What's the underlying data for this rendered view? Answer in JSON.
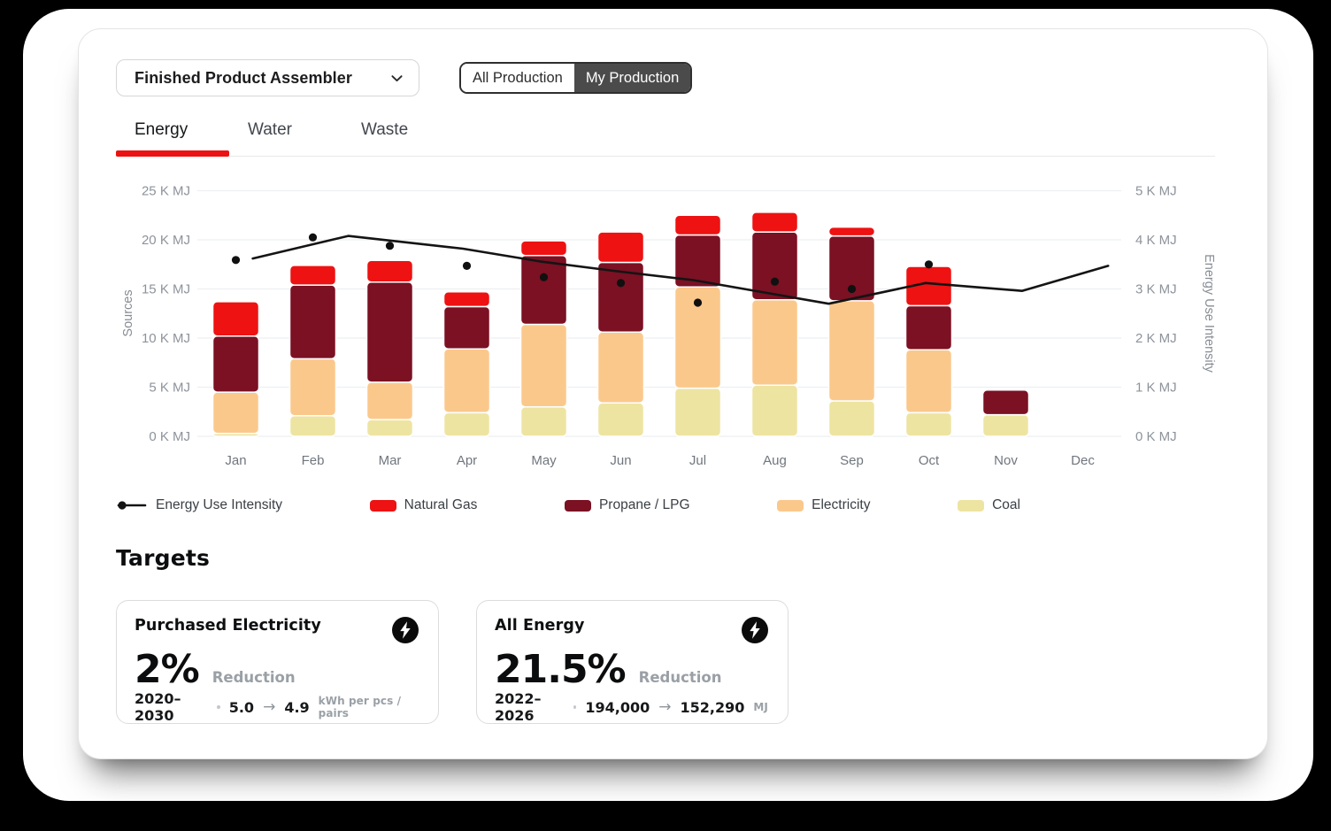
{
  "header": {
    "dropdown_label": "Finished Product Assembler",
    "toggle": {
      "options": [
        "All Production",
        "My Production"
      ],
      "selected": "My Production"
    }
  },
  "tabs": [
    {
      "label": "Energy",
      "active": true
    },
    {
      "label": "Water",
      "active": false
    },
    {
      "label": "Waste",
      "active": false
    }
  ],
  "chart_data": {
    "type": "bar",
    "subtype": "stacked-bars-with-line-and-points",
    "categories": [
      "Jan",
      "Feb",
      "Mar",
      "Apr",
      "May",
      "Jun",
      "Jul",
      "Aug",
      "Sep",
      "Oct",
      "Nov",
      "Dec"
    ],
    "left_axis": {
      "label": "Sources",
      "min": 0,
      "max": 25,
      "unit": "K MJ",
      "ticks": [
        "0 K MJ",
        "5 K MJ",
        "10 K MJ",
        "15 K MJ",
        "20 K MJ",
        "25 K MJ"
      ]
    },
    "right_axis": {
      "label": "Energy Use Intensity",
      "min": 0,
      "max": 5,
      "unit": "K MJ",
      "ticks": [
        "0 K MJ",
        "1 K MJ",
        "2 K MJ",
        "3 K MJ",
        "4 K MJ",
        "5 K MJ"
      ]
    },
    "series": [
      {
        "key": "coal",
        "name": "Coal",
        "color": "#eee4a2",
        "values": [
          0.3,
          2.1,
          1.7,
          2.4,
          3.0,
          3.4,
          4.9,
          5.2,
          3.6,
          2.4,
          2.2,
          0
        ]
      },
      {
        "key": "electricity",
        "name": "Electricity",
        "color": "#fbc88c",
        "values": [
          4.2,
          5.8,
          3.8,
          6.5,
          8.4,
          7.2,
          10.3,
          8.7,
          10.2,
          6.4,
          0,
          0
        ]
      },
      {
        "key": "propane-lpg",
        "name": "Propane / LPG",
        "color": "#7b1123",
        "values": [
          5.7,
          7.5,
          10.2,
          4.3,
          7.0,
          7.1,
          5.3,
          6.9,
          6.6,
          4.5,
          2.5,
          0
        ]
      },
      {
        "key": "natural-gas",
        "name": "Natural Gas",
        "color": "#ee1212",
        "values": [
          3.5,
          2.0,
          2.2,
          1.5,
          1.5,
          3.1,
          2.0,
          2.0,
          0.9,
          4.0,
          0,
          0
        ]
      }
    ],
    "eui_points_right_axis": [
      3.59,
      4.05,
      3.88,
      3.47,
      3.24,
      3.12,
      2.72,
      3.15,
      3.0,
      3.5,
      null,
      null
    ],
    "eui_line_right_axis": [
      [
        0.22,
        3.62
      ],
      [
        1.46,
        4.08
      ],
      [
        2.95,
        3.82
      ],
      [
        3.95,
        3.56
      ],
      [
        4.95,
        3.36
      ],
      [
        5.94,
        3.18
      ],
      [
        7.7,
        2.7
      ],
      [
        8.96,
        3.12
      ],
      [
        10.21,
        2.96
      ],
      [
        11.33,
        3.47
      ]
    ],
    "legend": [
      {
        "type": "line",
        "label": "Energy Use Intensity",
        "color": "#141414"
      },
      {
        "type": "swatch",
        "label": "Natural Gas",
        "color": "#ee1212"
      },
      {
        "type": "swatch",
        "label": "Propane / LPG",
        "color": "#7b1123"
      },
      {
        "type": "swatch",
        "label": "Electricity",
        "color": "#fbc88c"
      },
      {
        "type": "swatch",
        "label": "Coal",
        "color": "#eee4a2"
      }
    ],
    "grid": "horizontal",
    "legend_position": "bottom"
  },
  "targets": {
    "heading": "Targets",
    "arrow_icon": "→",
    "cards": [
      {
        "title": "Purchased Electricity",
        "percent": "2%",
        "reduction_label": "Reduction",
        "period": "2020–2030",
        "from": "5.0",
        "to": "4.9",
        "unit": "kWh per pcs / pairs"
      },
      {
        "title": "All Energy",
        "percent": "21.5%",
        "reduction_label": "Reduction",
        "period": "2022–2026",
        "from": "194,000",
        "to": "152,290",
        "unit": "MJ"
      }
    ]
  },
  "colors": {
    "accent_red": "#ed1212",
    "toggle_dark": "#4b4b4b",
    "line_black": "#141414"
  }
}
